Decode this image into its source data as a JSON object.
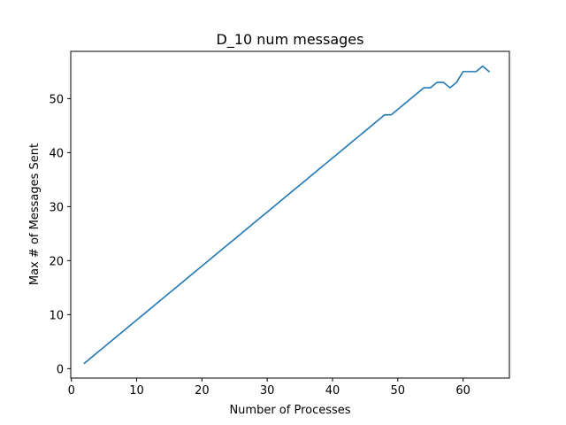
{
  "chart_data": {
    "type": "line",
    "title": "D_10 num messages",
    "xlabel": "Number of Processes",
    "ylabel": "Max # of Messages Sent",
    "xlim": [
      -0.1,
      67.1
    ],
    "ylim": [
      -1.75,
      58.75
    ],
    "xticks": [
      0,
      10,
      20,
      30,
      40,
      50,
      60
    ],
    "yticks": [
      0,
      10,
      20,
      30,
      40,
      50
    ],
    "grid": false,
    "legend": "none",
    "series": [
      {
        "color": "#1f77b4",
        "x": [
          2,
          3,
          4,
          5,
          6,
          7,
          8,
          9,
          10,
          11,
          12,
          13,
          14,
          15,
          16,
          17,
          18,
          19,
          20,
          21,
          22,
          23,
          24,
          25,
          26,
          27,
          28,
          29,
          30,
          31,
          32,
          33,
          34,
          35,
          36,
          37,
          38,
          39,
          40,
          41,
          42,
          43,
          44,
          45,
          46,
          47,
          48,
          49,
          50,
          51,
          52,
          53,
          54,
          55,
          56,
          57,
          58,
          59,
          60,
          61,
          62,
          63,
          64
        ],
        "values": [
          1,
          2,
          3,
          4,
          5,
          6,
          7,
          8,
          9,
          10,
          11,
          12,
          13,
          14,
          15,
          16,
          17,
          18,
          19,
          20,
          21,
          22,
          23,
          24,
          25,
          26,
          27,
          28,
          29,
          30,
          31,
          32,
          33,
          34,
          35,
          36,
          37,
          38,
          39,
          40,
          41,
          42,
          43,
          44,
          45,
          46,
          47,
          47,
          48,
          49,
          50,
          51,
          52,
          52,
          53,
          53,
          52,
          53,
          55,
          55,
          55,
          56,
          55
        ]
      }
    ]
  }
}
